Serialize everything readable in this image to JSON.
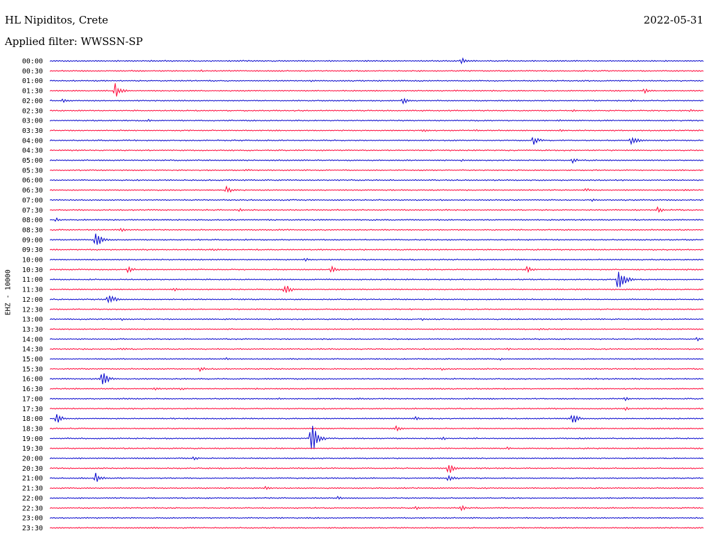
{
  "header": {
    "station": "HL Nipiditos, Crete",
    "date": "2022-05-31",
    "filter_text": "Applied filter: WWSSN-SP"
  },
  "chart_data": {
    "type": "line",
    "title": "HL Nipiditos, Crete",
    "ylabel": "EHZ - 10000",
    "colors": [
      "#0000cc",
      "#ff0033"
    ],
    "rows": [
      {
        "label": "00:00",
        "events": [
          {
            "t": 0.63,
            "a": 5
          }
        ]
      },
      {
        "label": "00:30",
        "events": [
          {
            "t": 0.23,
            "a": 2
          }
        ]
      },
      {
        "label": "01:00",
        "events": [
          {
            "t": 0.4,
            "a": 2
          }
        ]
      },
      {
        "label": "01:30",
        "events": [
          {
            "t": 0.1,
            "a": 11
          },
          {
            "t": 0.91,
            "a": 4
          }
        ]
      },
      {
        "label": "02:00",
        "events": [
          {
            "t": 0.02,
            "a": 3
          },
          {
            "t": 0.54,
            "a": 5
          },
          {
            "t": 0.89,
            "a": 2
          }
        ]
      },
      {
        "label": "02:30",
        "events": [
          {
            "t": 0.8,
            "a": 2
          },
          {
            "t": 0.98,
            "a": 2
          }
        ]
      },
      {
        "label": "03:00",
        "events": [
          {
            "t": 0.15,
            "a": 2
          },
          {
            "t": 0.78,
            "a": 2
          }
        ]
      },
      {
        "label": "03:30",
        "events": [
          {
            "t": 0.57,
            "a": 3
          },
          {
            "t": 0.65,
            "a": 2
          },
          {
            "t": 0.78,
            "a": 2
          }
        ]
      },
      {
        "label": "04:00",
        "events": [
          {
            "t": 0.74,
            "a": 7
          },
          {
            "t": 0.89,
            "a": 9
          }
        ]
      },
      {
        "label": "04:30",
        "events": []
      },
      {
        "label": "05:00",
        "events": [
          {
            "t": 0.63,
            "a": 2
          },
          {
            "t": 0.8,
            "a": 4
          }
        ]
      },
      {
        "label": "05:30",
        "events": [
          {
            "t": 0.3,
            "a": 2
          }
        ]
      },
      {
        "label": "06:00",
        "events": []
      },
      {
        "label": "06:30",
        "events": [
          {
            "t": 0.27,
            "a": 6
          },
          {
            "t": 0.82,
            "a": 3
          },
          {
            "t": 0.97,
            "a": 2
          }
        ]
      },
      {
        "label": "07:00",
        "events": [
          {
            "t": 0.83,
            "a": 2
          }
        ]
      },
      {
        "label": "07:30",
        "events": [
          {
            "t": 0.29,
            "a": 3
          },
          {
            "t": 0.93,
            "a": 5
          }
        ]
      },
      {
        "label": "08:00",
        "events": [
          {
            "t": 0.01,
            "a": 3
          }
        ]
      },
      {
        "label": "08:30",
        "events": [
          {
            "t": 0.11,
            "a": 3
          }
        ]
      },
      {
        "label": "09:00",
        "events": [
          {
            "t": 0.07,
            "a": 15
          }
        ]
      },
      {
        "label": "09:30",
        "events": [
          {
            "t": 0.25,
            "a": 2
          }
        ]
      },
      {
        "label": "10:00",
        "events": [
          {
            "t": 0.39,
            "a": 3
          }
        ]
      },
      {
        "label": "10:30",
        "events": [
          {
            "t": 0.12,
            "a": 5
          },
          {
            "t": 0.43,
            "a": 6
          },
          {
            "t": 0.73,
            "a": 5
          }
        ]
      },
      {
        "label": "11:00",
        "events": [
          {
            "t": 0.87,
            "a": 22
          }
        ]
      },
      {
        "label": "11:30",
        "events": [
          {
            "t": 0.19,
            "a": 3
          },
          {
            "t": 0.36,
            "a": 9
          }
        ]
      },
      {
        "label": "12:00",
        "events": [
          {
            "t": 0.09,
            "a": 10
          }
        ]
      },
      {
        "label": "12:30",
        "events": []
      },
      {
        "label": "13:00",
        "events": [
          {
            "t": 0.11,
            "a": 2
          },
          {
            "t": 0.57,
            "a": 2
          }
        ]
      },
      {
        "label": "13:30",
        "events": [
          {
            "t": 0.75,
            "a": 2
          }
        ]
      },
      {
        "label": "14:00",
        "events": [
          {
            "t": 0.99,
            "a": 3
          }
        ]
      },
      {
        "label": "14:30",
        "events": [
          {
            "t": 0.11,
            "a": 2
          },
          {
            "t": 0.7,
            "a": 2
          }
        ]
      },
      {
        "label": "15:00",
        "events": [
          {
            "t": 0.27,
            "a": 2
          },
          {
            "t": 0.69,
            "a": 2
          }
        ]
      },
      {
        "label": "15:30",
        "events": [
          {
            "t": 0.23,
            "a": 4
          },
          {
            "t": 0.6,
            "a": 2
          }
        ]
      },
      {
        "label": "16:00",
        "events": [
          {
            "t": 0.08,
            "a": 12
          }
        ]
      },
      {
        "label": "16:30",
        "events": [
          {
            "t": 0.16,
            "a": 3
          },
          {
            "t": 0.2,
            "a": 3
          }
        ]
      },
      {
        "label": "17:00",
        "events": [
          {
            "t": 0.35,
            "a": 2
          },
          {
            "t": 0.47,
            "a": 2
          },
          {
            "t": 0.88,
            "a": 3
          }
        ]
      },
      {
        "label": "17:30",
        "events": [
          {
            "t": 0.88,
            "a": 3
          }
        ]
      },
      {
        "label": "18:00",
        "events": [
          {
            "t": 0.01,
            "a": 9
          },
          {
            "t": 0.56,
            "a": 3
          },
          {
            "t": 0.8,
            "a": 10
          }
        ]
      },
      {
        "label": "18:30",
        "events": [
          {
            "t": 0.53,
            "a": 5
          }
        ]
      },
      {
        "label": "19:00",
        "events": [
          {
            "t": 0.4,
            "a": 30
          },
          {
            "t": 0.6,
            "a": 3
          }
        ]
      },
      {
        "label": "19:30",
        "events": [
          {
            "t": 0.7,
            "a": 2
          }
        ]
      },
      {
        "label": "20:00",
        "events": [
          {
            "t": 0.22,
            "a": 3
          }
        ]
      },
      {
        "label": "20:30",
        "events": [
          {
            "t": 0.61,
            "a": 10
          },
          {
            "t": 0.26,
            "a": 2
          }
        ]
      },
      {
        "label": "21:00",
        "events": [
          {
            "t": 0.07,
            "a": 8
          },
          {
            "t": 0.61,
            "a": 8
          }
        ]
      },
      {
        "label": "21:30",
        "events": [
          {
            "t": 0.33,
            "a": 3
          }
        ]
      },
      {
        "label": "22:00",
        "events": [
          {
            "t": 0.44,
            "a": 3
          }
        ]
      },
      {
        "label": "22:30",
        "events": [
          {
            "t": 0.56,
            "a": 3
          },
          {
            "t": 0.63,
            "a": 4
          }
        ]
      },
      {
        "label": "23:00",
        "events": []
      },
      {
        "label": "23:30",
        "events": [
          {
            "t": 0.16,
            "a": 2
          }
        ]
      }
    ]
  }
}
